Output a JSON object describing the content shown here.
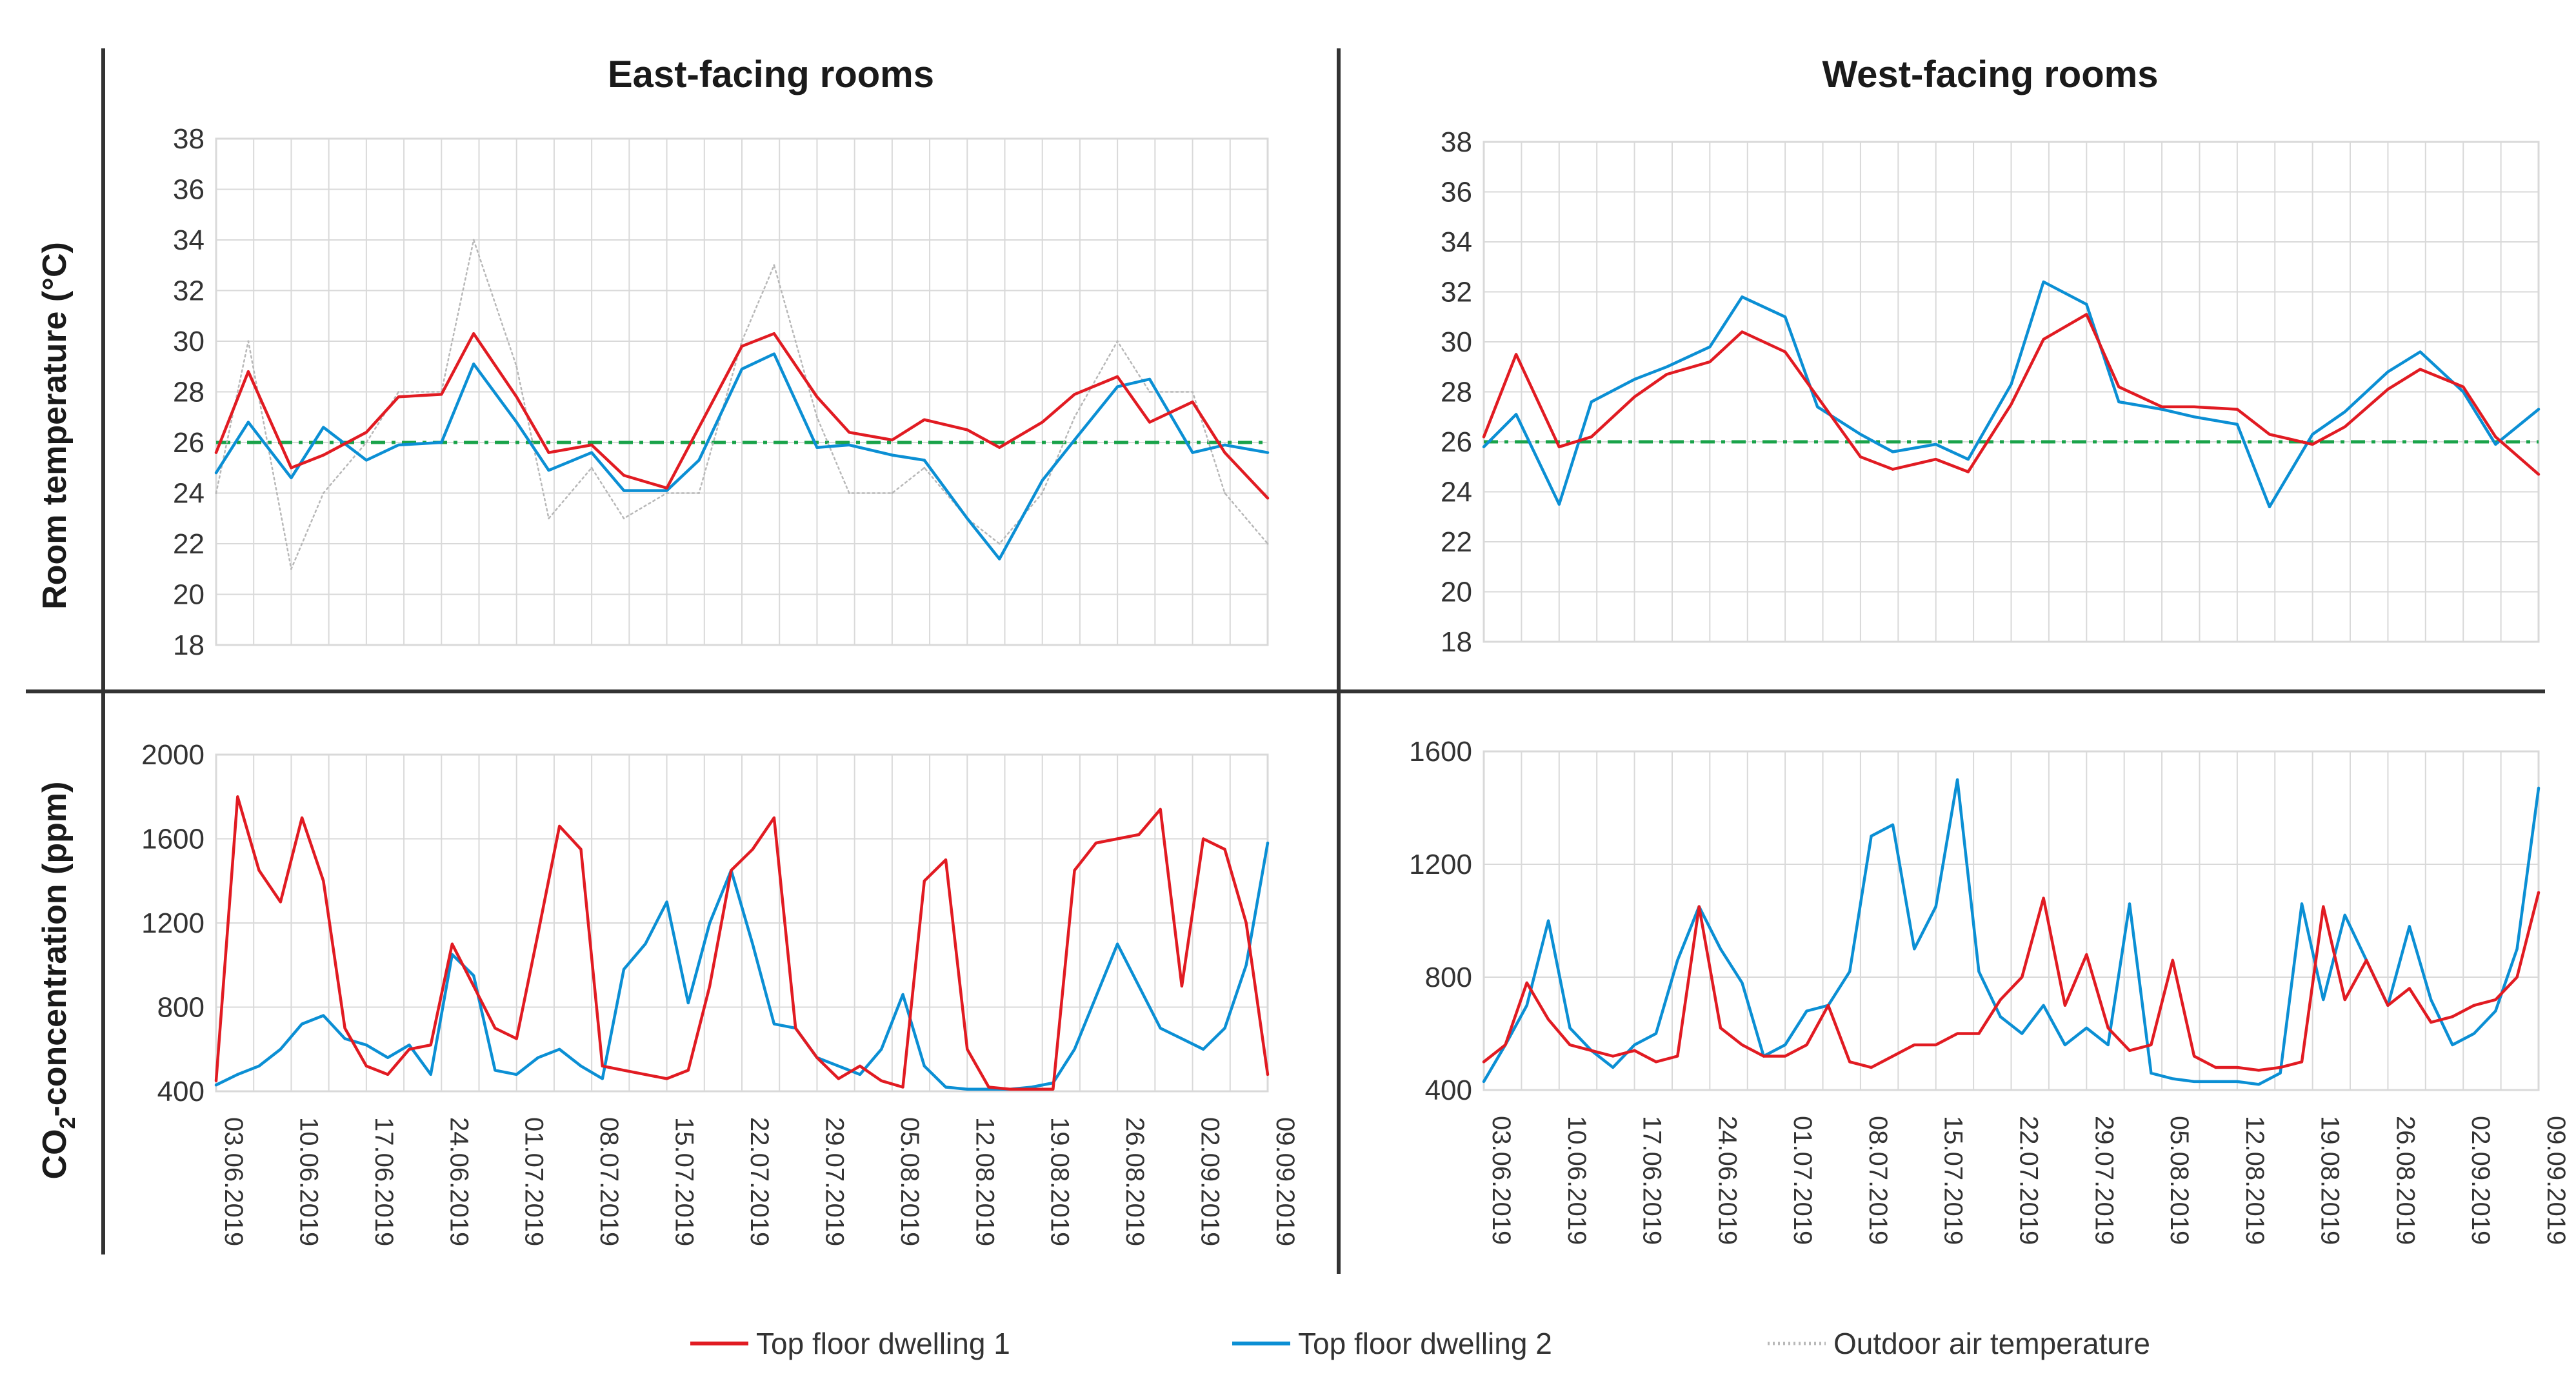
{
  "colors": {
    "dwelling1": "#e11b22",
    "dwelling2": "#0b8fd4",
    "outdoor": "#b8b8b8",
    "threshold": "#1aa34a",
    "grid": "#d9d9d9",
    "divider": "#333333"
  },
  "layout_labels": {
    "col_east": "East-facing rooms",
    "col_west": "West-facing rooms",
    "row_temp": "Room temperature (°C)",
    "row_co2_prefix": "CO",
    "row_co2_sub": "2",
    "row_co2_suffix": "-concentration (ppm)"
  },
  "legend": [
    {
      "name": "Top floor dwelling 1",
      "color": "#e11b22",
      "style": "solid"
    },
    {
      "name": "Top floor dwelling 2",
      "color": "#0b8fd4",
      "style": "solid"
    },
    {
      "name": "Outdoor air temperature",
      "color": "#b8b8b8",
      "style": "dotted"
    }
  ],
  "chart_data": [
    {
      "id": "east_temp",
      "type": "line",
      "title": "East-facing rooms",
      "ylabel": "Room temperature (°C)",
      "ylim": [
        18,
        38
      ],
      "yticks": [
        18,
        20,
        22,
        24,
        26,
        28,
        30,
        32,
        34,
        36,
        38
      ],
      "xlim": [
        0,
        98
      ],
      "threshold": 26,
      "series": [
        {
          "name": "Top floor dwelling 1",
          "key": "dwelling1",
          "x": [
            0,
            3,
            7,
            10,
            14,
            17,
            21,
            24,
            28,
            31,
            35,
            38,
            42,
            45,
            49,
            52,
            56,
            59,
            63,
            66,
            70,
            73,
            77,
            80,
            84,
            87,
            91,
            94,
            98
          ],
          "values": [
            25.6,
            28.8,
            25.0,
            25.5,
            26.4,
            27.8,
            27.9,
            30.3,
            27.8,
            25.6,
            25.9,
            24.7,
            24.2,
            26.6,
            29.8,
            30.3,
            27.8,
            26.4,
            26.1,
            26.9,
            26.5,
            25.8,
            26.8,
            27.9,
            28.6,
            26.8,
            27.6,
            25.6,
            23.8
          ]
        },
        {
          "name": "Top floor dwelling 2",
          "key": "dwelling2",
          "x": [
            0,
            3,
            7,
            10,
            14,
            17,
            21,
            24,
            28,
            31,
            35,
            38,
            42,
            45,
            49,
            52,
            56,
            59,
            63,
            66,
            70,
            73,
            77,
            80,
            84,
            87,
            91,
            94,
            98
          ],
          "values": [
            24.8,
            26.8,
            24.6,
            26.6,
            25.3,
            25.9,
            26.0,
            29.1,
            26.8,
            24.9,
            25.6,
            24.1,
            24.1,
            25.3,
            28.9,
            29.5,
            25.8,
            25.9,
            25.5,
            25.3,
            23.0,
            21.4,
            24.5,
            26.1,
            28.2,
            28.5,
            25.6,
            25.9,
            25.6
          ]
        },
        {
          "name": "Outdoor air temperature",
          "key": "outdoor",
          "x": [
            0,
            3,
            7,
            10,
            14,
            17,
            21,
            24,
            28,
            31,
            35,
            38,
            42,
            45,
            49,
            52,
            56,
            59,
            63,
            66,
            70,
            73,
            77,
            80,
            84,
            87,
            91,
            94,
            98
          ],
          "values": [
            24,
            30,
            21,
            24,
            26,
            28,
            28,
            34,
            29,
            23,
            25,
            23,
            24,
            24,
            30,
            33,
            27,
            24,
            24,
            25,
            23,
            22,
            24,
            27,
            30,
            28,
            28,
            24,
            22
          ]
        }
      ]
    },
    {
      "id": "west_temp",
      "type": "line",
      "title": "West-facing rooms",
      "ylim": [
        18,
        38
      ],
      "yticks": [
        18,
        20,
        22,
        24,
        26,
        28,
        30,
        32,
        34,
        36,
        38
      ],
      "xlim": [
        0,
        98
      ],
      "threshold": 26,
      "series": [
        {
          "name": "Top floor dwelling 1",
          "key": "dwelling1",
          "x": [
            0,
            3,
            7,
            10,
            14,
            17,
            21,
            24,
            28,
            31,
            35,
            38,
            42,
            45,
            49,
            52,
            56,
            59,
            63,
            66,
            70,
            73,
            77,
            80,
            84,
            87,
            91,
            94,
            98
          ],
          "values": [
            26.2,
            29.5,
            25.8,
            26.2,
            27.8,
            28.7,
            29.2,
            30.4,
            29.6,
            27.8,
            25.4,
            24.9,
            25.3,
            24.8,
            27.5,
            30.1,
            31.1,
            28.2,
            27.4,
            27.4,
            27.3,
            26.3,
            25.9,
            26.6,
            28.1,
            28.9,
            28.2,
            26.2,
            24.7
          ]
        },
        {
          "name": "Top floor dwelling 2",
          "key": "dwelling2",
          "x": [
            0,
            3,
            7,
            10,
            14,
            17,
            21,
            24,
            28,
            31,
            35,
            38,
            42,
            45,
            49,
            52,
            56,
            59,
            63,
            66,
            70,
            73,
            77,
            80,
            84,
            87,
            91,
            94,
            98
          ],
          "values": [
            25.8,
            27.1,
            23.5,
            27.6,
            28.5,
            29.0,
            29.8,
            31.8,
            31.0,
            27.4,
            26.3,
            25.6,
            25.9,
            25.3,
            28.3,
            32.4,
            31.5,
            27.6,
            27.3,
            27.0,
            26.7,
            23.4,
            26.3,
            27.2,
            28.8,
            29.6,
            28.0,
            25.9,
            27.3
          ]
        }
      ]
    },
    {
      "id": "east_co2",
      "type": "line",
      "ylabel": "CO2-concentration (ppm)",
      "ylim": [
        400,
        2000
      ],
      "yticks": [
        400,
        800,
        1200,
        1600,
        2000
      ],
      "xlim": [
        0,
        98
      ],
      "xticks": [
        "03.06.2019",
        "10.06.2019",
        "17.06.2019",
        "24.06.2019",
        "01.07.2019",
        "08.07.2019",
        "15.07.2019",
        "22.07.2019",
        "29.07.2019",
        "05.08.2019",
        "12.08.2019",
        "19.08.2019",
        "26.08.2019",
        "02.09.2019",
        "09.09.2019"
      ],
      "series": [
        {
          "name": "Top floor dwelling 1",
          "key": "dwelling1",
          "x": [
            0,
            2,
            4,
            6,
            8,
            10,
            12,
            14,
            16,
            18,
            20,
            22,
            24,
            26,
            28,
            30,
            32,
            34,
            36,
            38,
            40,
            42,
            44,
            46,
            48,
            50,
            52,
            54,
            56,
            58,
            60,
            62,
            64,
            66,
            68,
            70,
            72,
            74,
            76,
            78,
            80,
            82,
            84,
            86,
            88,
            90,
            92,
            94,
            96,
            98
          ],
          "values": [
            450,
            1800,
            1450,
            1300,
            1700,
            1400,
            700,
            520,
            480,
            600,
            620,
            1100,
            900,
            700,
            650,
            1150,
            1660,
            1550,
            520,
            500,
            480,
            460,
            500,
            900,
            1450,
            1550,
            1700,
            700,
            560,
            460,
            520,
            450,
            420,
            1400,
            1500,
            600,
            420,
            410,
            410,
            410,
            1450,
            1580,
            1600,
            1620,
            1740,
            900,
            1600,
            1550,
            1200,
            480
          ]
        },
        {
          "name": "Top floor dwelling 2",
          "key": "dwelling2",
          "x": [
            0,
            2,
            4,
            6,
            8,
            10,
            12,
            14,
            16,
            18,
            20,
            22,
            24,
            26,
            28,
            30,
            32,
            34,
            36,
            38,
            40,
            42,
            44,
            46,
            48,
            50,
            52,
            54,
            56,
            58,
            60,
            62,
            64,
            66,
            68,
            70,
            72,
            74,
            76,
            78,
            80,
            82,
            84,
            86,
            88,
            90,
            92,
            94,
            96,
            98
          ],
          "values": [
            430,
            480,
            520,
            600,
            720,
            760,
            650,
            620,
            560,
            620,
            480,
            1050,
            950,
            500,
            480,
            560,
            600,
            520,
            460,
            980,
            1100,
            1300,
            820,
            1200,
            1450,
            1100,
            720,
            700,
            560,
            520,
            480,
            600,
            860,
            520,
            420,
            410,
            410,
            410,
            420,
            440,
            600,
            850,
            1100,
            900,
            700,
            650,
            600,
            700,
            1000,
            1580
          ]
        }
      ]
    },
    {
      "id": "west_co2",
      "type": "line",
      "ylim": [
        400,
        1600
      ],
      "yticks": [
        400,
        800,
        1200,
        1600
      ],
      "xlim": [
        0,
        98
      ],
      "xticks": [
        "03.06.2019",
        "10.06.2019",
        "17.06.2019",
        "24.06.2019",
        "01.07.2019",
        "08.07.2019",
        "15.07.2019",
        "22.07.2019",
        "29.07.2019",
        "05.08.2019",
        "12.08.2019",
        "19.08.2019",
        "26.08.2019",
        "02.09.2019",
        "09.09.2019"
      ],
      "series": [
        {
          "name": "Top floor dwelling 1",
          "key": "dwelling1",
          "x": [
            0,
            2,
            4,
            6,
            8,
            10,
            12,
            14,
            16,
            18,
            20,
            22,
            24,
            26,
            28,
            30,
            32,
            34,
            36,
            38,
            40,
            42,
            44,
            46,
            48,
            50,
            52,
            54,
            56,
            58,
            60,
            62,
            64,
            66,
            68,
            70,
            72,
            74,
            76,
            78,
            80,
            82,
            84,
            86,
            88,
            90,
            92,
            94,
            96,
            98
          ],
          "values": [
            500,
            560,
            780,
            650,
            560,
            540,
            520,
            540,
            500,
            520,
            1050,
            620,
            560,
            520,
            520,
            560,
            700,
            500,
            480,
            520,
            560,
            560,
            600,
            600,
            720,
            800,
            1080,
            700,
            880,
            620,
            540,
            560,
            860,
            520,
            480,
            480,
            470,
            480,
            500,
            1050,
            720,
            860,
            700,
            760,
            640,
            660,
            700,
            720,
            800,
            1100
          ]
        },
        {
          "name": "Top floor dwelling 2",
          "key": "dwelling2",
          "x": [
            0,
            2,
            4,
            6,
            8,
            10,
            12,
            14,
            16,
            18,
            20,
            22,
            24,
            26,
            28,
            30,
            32,
            34,
            36,
            38,
            40,
            42,
            44,
            46,
            48,
            50,
            52,
            54,
            56,
            58,
            60,
            62,
            64,
            66,
            68,
            70,
            72,
            74,
            76,
            78,
            80,
            82,
            84,
            86,
            88,
            90,
            92,
            94,
            96,
            98
          ],
          "values": [
            430,
            560,
            700,
            1000,
            620,
            540,
            480,
            560,
            600,
            860,
            1050,
            900,
            780,
            520,
            560,
            680,
            700,
            820,
            1300,
            1340,
            900,
            1050,
            1500,
            820,
            660,
            600,
            700,
            560,
            620,
            560,
            1060,
            460,
            440,
            430,
            430,
            430,
            420,
            460,
            1060,
            720,
            1020,
            860,
            700,
            980,
            720,
            560,
            600,
            680,
            900,
            1470
          ]
        }
      ]
    }
  ]
}
